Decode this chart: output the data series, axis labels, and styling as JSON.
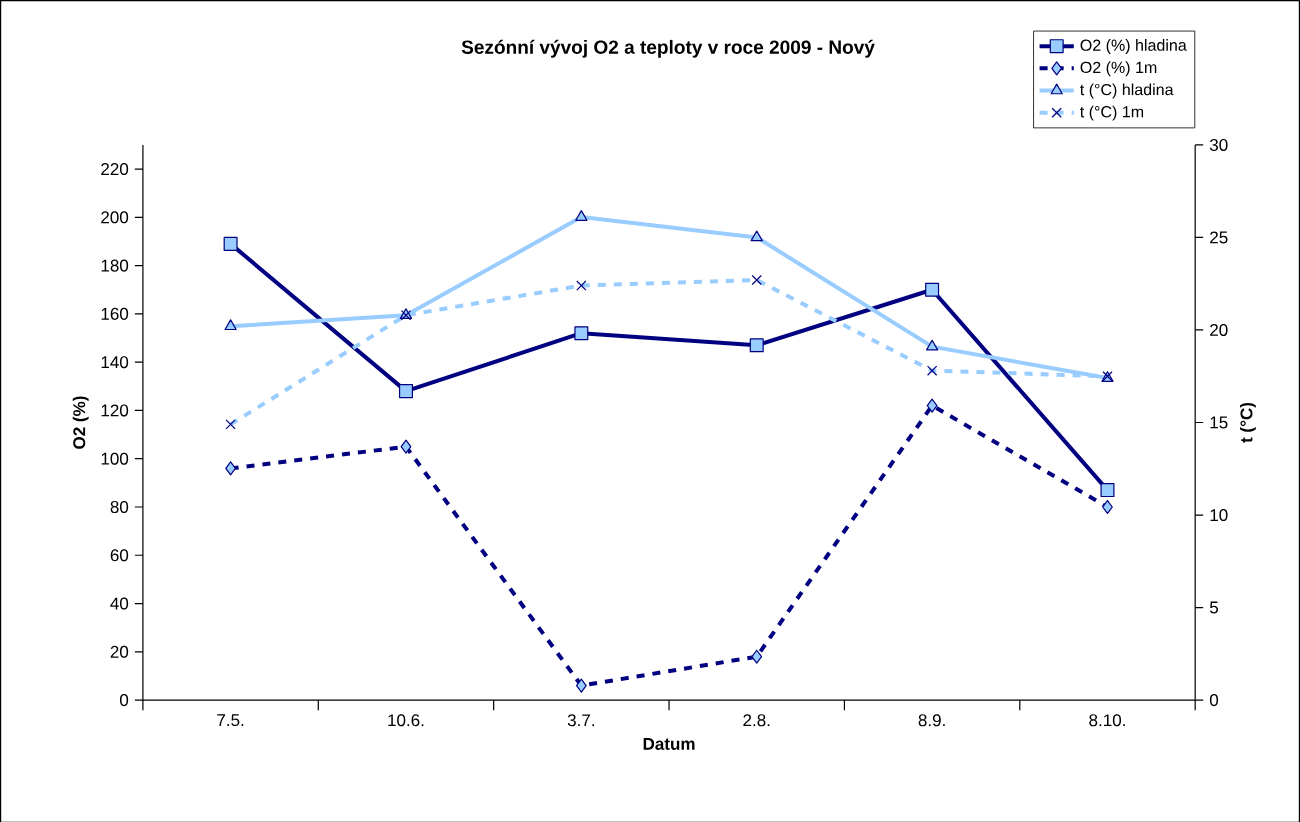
{
  "chart_data": {
    "type": "line",
    "title": "Sezónní vývoj O2 a teploty v roce 2009 - Nový",
    "xlabel": "Datum",
    "ylabel": "O2 (%)",
    "y2label": "t (°C)",
    "categories": [
      "7.5.",
      "10.6.",
      "3.7.",
      "2.8.",
      "8.9.",
      "8.10."
    ],
    "ylim": [
      0,
      230
    ],
    "yticks": [
      0,
      20,
      40,
      60,
      80,
      100,
      120,
      140,
      160,
      180,
      200,
      220
    ],
    "y2lim": [
      0,
      30
    ],
    "y2ticks": [
      0,
      5,
      10,
      15,
      20,
      25,
      30
    ],
    "legend": "top right",
    "grid": false,
    "series": [
      {
        "name": "O2 (%) hladina",
        "color": "#000080",
        "marker": "square",
        "line_style": "solid",
        "values": [
          189,
          128,
          152,
          147,
          170,
          87
        ]
      },
      {
        "name": "O2 (%) 1m",
        "color": "#000080",
        "marker": "diamond",
        "line_style": "dashed",
        "values": [
          96,
          105,
          6,
          18,
          122,
          80
        ]
      },
      {
        "name": "t (°C) hladina",
        "color": "#99ccff",
        "marker": "triangle",
        "line_style": "solid",
        "axis": "y2",
        "values": [
          20.2,
          20.8,
          26.1,
          25.0,
          19.1,
          17.4
        ]
      },
      {
        "name": "t (°C) 1m",
        "color": "#99ccff",
        "marker": "cross",
        "line_style": "dashed",
        "axis": "y2",
        "values": [
          14.9,
          20.8,
          22.4,
          22.7,
          17.8,
          17.5
        ]
      }
    ]
  }
}
